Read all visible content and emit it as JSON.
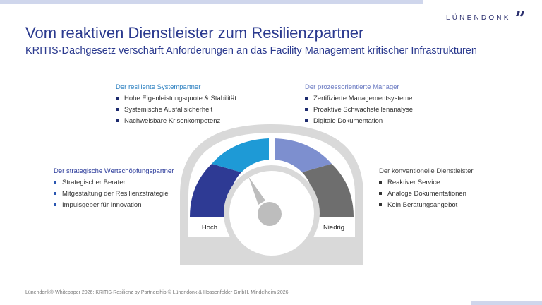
{
  "logo": {
    "text": "LÜNENDONK",
    "mark": "”"
  },
  "title": "Vom reaktiven Dienstleister zum Resilienzpartner",
  "subtitle": "KRITIS-Dachgesetz verschärft Anforderungen an das Facility Management kritischer Infrastrukturen",
  "blocks": {
    "top_left": {
      "title": "Der resiliente Systempartner",
      "items": [
        "Hohe Eigenleistungsquote & Stabilität",
        "Systemische Ausfallsicherheit",
        "Nachweisbare Krisenkompetenz"
      ]
    },
    "top_right": {
      "title": "Der prozessorientierte Manager",
      "items": [
        "Zertifizierte Managementsysteme",
        "Proaktive Schwachstellenanalyse",
        "Digitale Dokumentation"
      ]
    },
    "mid_left": {
      "title": "Der strategische Wertschöpfungspartner",
      "items": [
        "Strategischer Berater",
        "Mitgestaltung der Resilienzstrategie",
        "Impulsgeber für Innovation"
      ]
    },
    "mid_right": {
      "title": "Der konventionelle Dienstleister",
      "items": [
        "Reaktiver Service",
        "Analoge Dokumentationen",
        "Kein Beratungsangebot"
      ]
    }
  },
  "gauge": {
    "label_left": "Hoch",
    "label_right": "Niedrig",
    "segment_colors": [
      "#2e3a94",
      "#1e9ad6",
      "#7d8fcf",
      "#6e6e6e"
    ],
    "housing_color": "#d9d9d9"
  },
  "footer": "Lünendonk®-Whitepaper 2026: KRITIS-Resilienz by Partnership © Lünendonk & Hossenfelder GmbH, Mindelheim 2026"
}
